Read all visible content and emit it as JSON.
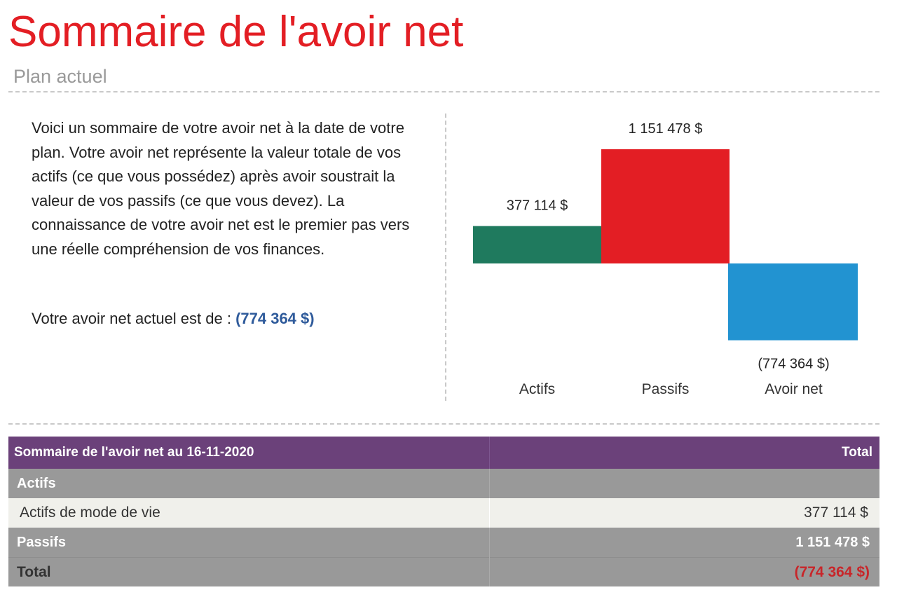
{
  "page": {
    "title": "Sommaire de l'avoir net",
    "subtitle": "Plan actuel",
    "intro": "Voici un sommaire de votre avoir net à la date de votre plan. Votre avoir net représente la valeur totale de vos actifs (ce que vous possédez) après avoir soustrait la valeur de vos passifs (ce que vous devez). La connaissance de votre avoir net est le premier pas vers une réelle compréhension de vos finances.",
    "networth_label": "Votre avoir net actuel est de : ",
    "networth_value": "(774 364 $)"
  },
  "chart_data": {
    "type": "bar",
    "title": "",
    "xlabel": "",
    "ylabel": "",
    "categories": [
      "Actifs",
      "Passifs",
      "Avoir net"
    ],
    "values": [
      377114,
      1151478,
      -774364
    ],
    "labels": [
      "377 114 $",
      "1 151 478 $",
      "(774 364 $)"
    ],
    "colors": [
      "#1f7a5e",
      "#e31e24",
      "#2293d1"
    ],
    "ylim": [
      -774364,
      1151478
    ],
    "grid": false,
    "legend": "none"
  },
  "table": {
    "header": {
      "label": "Sommaire de l'avoir net au 16-11-2020",
      "total": "Total"
    },
    "assets_section": "Actifs",
    "asset_rows": [
      {
        "label": "Actifs de mode de vie",
        "value": "377 114 $"
      }
    ],
    "liabilities": {
      "label": "Passifs",
      "value": "1 151 478 $"
    },
    "total": {
      "label": "Total",
      "value": "(774 364 $)"
    }
  }
}
